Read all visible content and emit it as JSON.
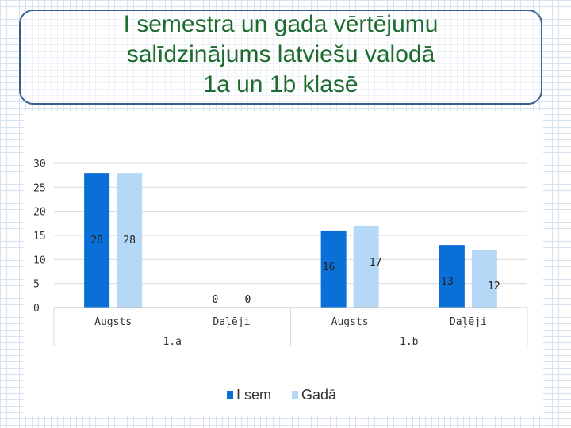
{
  "slide": {
    "title_line1": "I semestra un gada vērtējumu",
    "title_line2": "salīdzinājums latviešu valodā",
    "title_line3": "1a un 1b klasē"
  },
  "colors": {
    "title": "#1e6b2f",
    "title_border": "#3a5f8f",
    "series1": "#0a70d8",
    "series2": "#b4d8f6"
  },
  "chart_data": {
    "type": "bar",
    "ylim": [
      0,
      30
    ],
    "yticks": [
      0,
      5,
      10,
      15,
      20,
      25,
      30
    ],
    "groups": [
      {
        "label": "1.a",
        "categories": [
          "Augsts",
          "Daļēji"
        ]
      },
      {
        "label": "1.b",
        "categories": [
          "Augsts",
          "Daļēji"
        ]
      }
    ],
    "categories": [
      "Augsts",
      "Daļēji",
      "Augsts",
      "Daļēji"
    ],
    "series": [
      {
        "name": "I sem",
        "values": [
          28,
          0,
          16,
          13
        ]
      },
      {
        "name": "Gadā",
        "values": [
          28,
          0,
          17,
          12
        ]
      }
    ],
    "data_labels": [
      [
        "28",
        "0",
        "16",
        "13"
      ],
      [
        "28",
        "0",
        "17",
        "12"
      ]
    ],
    "legend_position": "bottom",
    "grid": true
  }
}
